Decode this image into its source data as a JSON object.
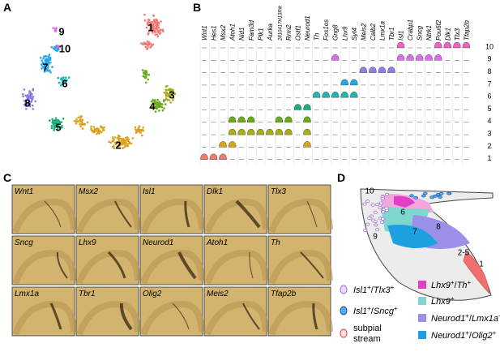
{
  "panels": {
    "a": "A",
    "b": "B",
    "c": "C",
    "d": "D"
  },
  "umap": {
    "cluster_labels": [
      "1",
      "2",
      "3",
      "4",
      "5",
      "6",
      "7",
      "8",
      "9",
      "10"
    ]
  },
  "violin": {
    "genes": [
      "Wnt1",
      "Hes1",
      "Msx2",
      "Atoh1",
      "Nid1",
      "Fam3d",
      "Plk1",
      "Aurka",
      "2810417H13Rik",
      "Rrm2",
      "Ostf1",
      "Neurod1",
      "Th",
      "Fos1os",
      "Gng8",
      "Lhx9",
      "Syt4",
      "Meis2",
      "Calb2",
      "Lmx1a",
      "Tbr1",
      "Isl1",
      "Crabp1",
      "Sncg",
      "Ntrk1",
      "Pou6f2",
      "Dlk1",
      "Tlx3",
      "Tfap2b"
    ],
    "clusters": [
      "10",
      "9",
      "8",
      "7",
      "6",
      "5",
      "4",
      "3",
      "2",
      "1"
    ]
  },
  "sections": {
    "genes": [
      "Wnt1",
      "Msx2",
      "Isl1",
      "Dlk1",
      "Tlx3",
      "Sncg",
      "Lhx9",
      "Neurod1",
      "Atoh1",
      "Th",
      "Lmx1a",
      "Tbr1",
      "Olig2",
      "Meis2",
      "Tfap2b"
    ]
  },
  "diagram": {
    "region_labels": [
      "10",
      "6",
      "8",
      "7",
      "9",
      "2-5",
      "1"
    ],
    "legend": [
      {
        "parts": [
          "Isl1",
          "+",
          "/",
          "Tlx3",
          "+"
        ]
      },
      {
        "parts": [
          "Isl1",
          "+",
          "/",
          "Sncg",
          "+"
        ]
      },
      {
        "lines": [
          "subpial",
          "stream"
        ]
      },
      {
        "parts": [
          "Lhx9",
          "+",
          "/",
          "Th",
          "+"
        ]
      },
      {
        "parts": [
          "Lhx9",
          "+"
        ]
      },
      {
        "parts": [
          "Neurod1",
          "+",
          "/",
          "Lmx1a",
          "+"
        ]
      },
      {
        "parts": [
          "Neurod1",
          "+",
          "/",
          "Olig2",
          "+"
        ]
      }
    ]
  }
}
